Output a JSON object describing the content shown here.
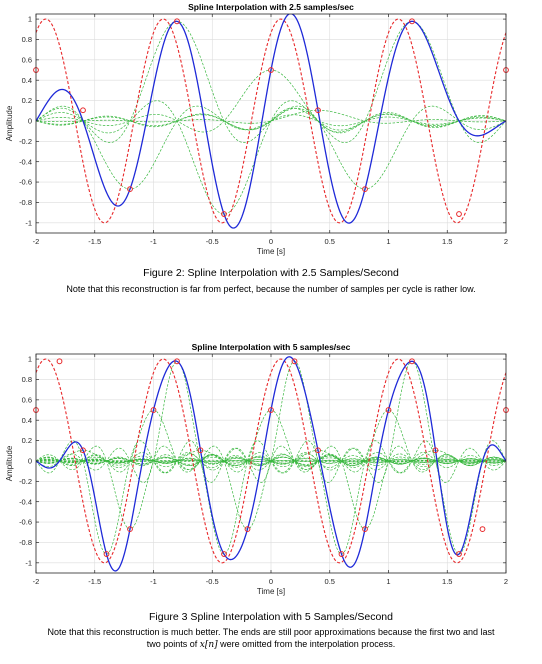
{
  "figures": [
    {
      "caption": "Figure 2:  Spline Interpolation with 2.5 Samples/Second",
      "note": "Note that this reconstruction is far from perfect, because the number of samples per cycle is rather low."
    },
    {
      "caption": "Figure 3 Spline Interpolation with 5 Samples/Second",
      "note_line1": "Note that this reconstruction is much better.  The ends are still poor approximations because the first two and last",
      "note_line2_pre": "two points of ",
      "note_math": "x[n]",
      "note_line2_post": " were omitted from the interpolation process."
    }
  ],
  "chart_data": [
    {
      "type": "line",
      "title": "Spline Interpolation with 2.5 samples/sec",
      "xlabel": "Time [s]",
      "ylabel": "Amplitude",
      "xlim": [
        -2,
        2
      ],
      "ylim": [
        -1.1,
        1.05
      ],
      "xticks": [
        "-2",
        "-1.5",
        "-1",
        "-0.5",
        "0",
        "0.5",
        "1",
        "1.5",
        "2"
      ],
      "yticks": [
        "1",
        "0.8",
        "0.6",
        "0.4",
        "0.2",
        "0",
        "-0.2",
        "-0.4",
        "-0.6",
        "-0.8",
        "-1"
      ],
      "grid": true,
      "signal_frequency_hz": 1,
      "signal_phase_deg": -30,
      "sample_rate_hz": 2.5,
      "samples_x": [
        -2,
        -1.6,
        -1.2,
        -0.8,
        -0.4,
        0,
        0.4,
        0.8,
        1.2,
        1.6,
        2
      ],
      "samples_y": [
        0.5,
        0.105,
        -0.669,
        0.978,
        -0.914,
        0.5,
        0.105,
        -0.669,
        0.978,
        -0.914,
        0.5
      ],
      "interpolated_sample_indices": [
        2,
        3,
        4,
        5,
        6,
        7,
        8
      ],
      "colors": {
        "original": "#e8292b",
        "reconstruction": "#1f2ad8",
        "components": "#39b73f",
        "markers": "#e8292b"
      }
    },
    {
      "type": "line",
      "title": "Spline Interpolation with 5 samples/sec",
      "xlabel": "Time [s]",
      "ylabel": "Amplitude",
      "xlim": [
        -2,
        2
      ],
      "ylim": [
        -1.1,
        1.05
      ],
      "xticks": [
        "-2",
        "-1.5",
        "-1",
        "-0.5",
        "0",
        "0.5",
        "1",
        "1.5",
        "2"
      ],
      "yticks": [
        "1",
        "0.8",
        "0.6",
        "0.4",
        "0.2",
        "0",
        "-0.2",
        "-0.4",
        "-0.6",
        "-0.8",
        "-1"
      ],
      "grid": true,
      "signal_frequency_hz": 1,
      "signal_phase_deg": -30,
      "sample_rate_hz": 5,
      "samples_x": [
        -2,
        -1.8,
        -1.6,
        -1.4,
        -1.2,
        -1,
        -0.8,
        -0.6,
        -0.4,
        -0.2,
        0,
        0.2,
        0.4,
        0.6,
        0.8,
        1,
        1.2,
        1.4,
        1.6,
        1.8,
        2
      ],
      "samples_y": [
        0.5,
        0.978,
        0.105,
        -0.914,
        -0.669,
        0.5,
        0.978,
        0.105,
        -0.914,
        -0.669,
        0.5,
        0.978,
        0.105,
        -0.914,
        -0.669,
        0.5,
        0.978,
        0.105,
        -0.914,
        -0.669,
        0.5
      ],
      "interpolated_sample_indices": [
        2,
        3,
        4,
        5,
        6,
        7,
        8,
        9,
        10,
        11,
        12,
        13,
        14,
        15,
        16,
        17,
        18
      ],
      "colors": {
        "original": "#e8292b",
        "reconstruction": "#1f2ad8",
        "components": "#39b73f",
        "markers": "#e8292b"
      }
    }
  ]
}
